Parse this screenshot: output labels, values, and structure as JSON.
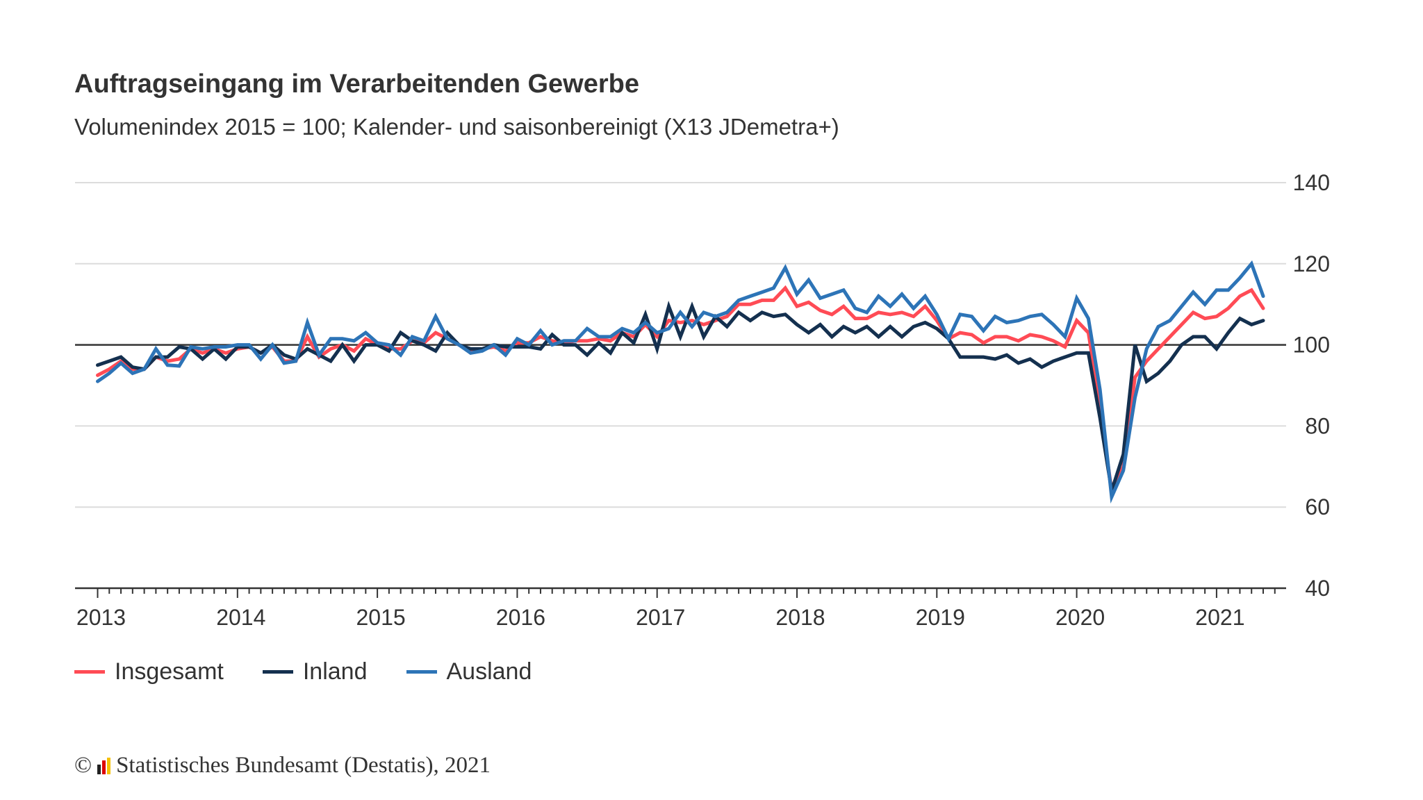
{
  "chart_data": {
    "type": "line",
    "title": "Auftragseingang im Verarbeitenden Gewerbe",
    "subtitle": "Volumenindex 2015 = 100; Kalender- und saisonbereinigt (X13 JDemetra+)",
    "xlabel": "",
    "ylabel": "",
    "x_start": "2013-01",
    "x_end": "2021-05",
    "x_frequency": "monthly",
    "x_tick_labels": [
      "2013",
      "2014",
      "2015",
      "2016",
      "2017",
      "2018",
      "2019",
      "2020",
      "2021"
    ],
    "y_tick_labels": [
      "140",
      "120",
      "100",
      "80",
      "60",
      "40"
    ],
    "ylim": [
      40,
      140
    ],
    "y_ticks": [
      40,
      60,
      80,
      100,
      120,
      140
    ],
    "reference_line": 100,
    "grid": true,
    "legend_position": "bottom-left",
    "series": [
      {
        "name": "Insgesamt",
        "color": "#ff4b55",
        "values": [
          92.5,
          94,
          96,
          94,
          94,
          97,
          96,
          96.5,
          99,
          98,
          99,
          98,
          99,
          99.5,
          98,
          99.5,
          96,
          96,
          102,
          97,
          99,
          100,
          98.5,
          101.5,
          100,
          99,
          99,
          101,
          100.5,
          103,
          101.5,
          100,
          98.5,
          99,
          99.5,
          98.5,
          100.5,
          100.5,
          102,
          101,
          100.5,
          101,
          101,
          101.5,
          101,
          103,
          102,
          105,
          102,
          106,
          105.5,
          106,
          105,
          106,
          107,
          110,
          110,
          111,
          111,
          114,
          109.5,
          110.5,
          108.5,
          107.5,
          109.5,
          106.5,
          106.5,
          108,
          107.5,
          108,
          107,
          109.5,
          106,
          101.5,
          103,
          102.5,
          100.5,
          102,
          102,
          101,
          102.5,
          102,
          101,
          99.5,
          106,
          103,
          85,
          64,
          70,
          92,
          96,
          99,
          102,
          105,
          108,
          106.5,
          107,
          109,
          112,
          113.5,
          109
        ]
      },
      {
        "name": "Inland",
        "color": "#14304f",
        "values": [
          95,
          96,
          97,
          94.5,
          94,
          97,
          97,
          99.5,
          99,
          96.5,
          99,
          96.5,
          99.5,
          99.5,
          98,
          100,
          97.5,
          96.5,
          99,
          97.5,
          96,
          100,
          96,
          100,
          100,
          98.5,
          103,
          101,
          100,
          98.5,
          103,
          100,
          99,
          99,
          100,
          99.5,
          99.5,
          99.5,
          99,
          102.5,
          100,
          100,
          97.5,
          100.5,
          98,
          103,
          100.5,
          107.5,
          99,
          109.5,
          102,
          109.5,
          102,
          107,
          104.5,
          108,
          106,
          108,
          107,
          107.5,
          105,
          103,
          105,
          102,
          104.5,
          103,
          104.5,
          102,
          104.5,
          102,
          104.5,
          105.5,
          104,
          101.5,
          97,
          97,
          97,
          96.5,
          97.5,
          95.5,
          96.5,
          94.5,
          96,
          97,
          98,
          98,
          82,
          64,
          73,
          100,
          91,
          93,
          96,
          100,
          102,
          102,
          99,
          103,
          106.5,
          105,
          106
        ]
      },
      {
        "name": "Ausland",
        "color": "#2d74b7",
        "values": [
          91,
          93,
          95.5,
          93,
          94,
          99,
          95,
          94.8,
          99.5,
          99,
          99.5,
          99.5,
          100,
          100,
          96.5,
          100,
          95.5,
          96,
          105.5,
          97.5,
          101.5,
          101.5,
          101,
          103,
          100.5,
          100,
          97.5,
          102,
          101,
          107,
          101.5,
          100,
          98,
          98.5,
          100,
          97.5,
          101.5,
          100,
          103.5,
          100,
          101,
          101,
          104,
          102,
          102,
          104,
          103,
          105.5,
          103,
          104,
          108,
          104.5,
          108,
          107,
          108,
          111,
          112,
          113,
          114,
          119,
          112.5,
          116,
          111.5,
          112.5,
          113.5,
          109,
          108,
          112,
          109.5,
          112.5,
          109,
          112,
          107.5,
          101.5,
          107.5,
          107,
          103.5,
          107,
          105.5,
          106,
          107,
          107.5,
          105,
          102,
          111.5,
          106.5,
          89,
          62.5,
          69,
          87,
          99,
          104.5,
          106,
          109.5,
          113,
          110,
          113.5,
          113.5,
          116.5,
          120,
          112
        ]
      }
    ]
  },
  "footer": {
    "copyright_symbol": "©",
    "source": "Statistisches Bundesamt (Destatis), 2021"
  }
}
